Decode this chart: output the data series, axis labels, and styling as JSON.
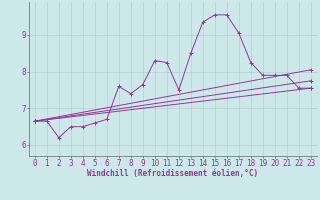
{
  "background_color": "#cce8e8",
  "grid_color": "#aacccc",
  "line_color": "#993399",
  "xlim": [
    -0.5,
    23.5
  ],
  "ylim": [
    5.7,
    9.9
  ],
  "yticks": [
    6,
    7,
    8,
    9
  ],
  "xticks": [
    0,
    1,
    2,
    3,
    4,
    5,
    6,
    7,
    8,
    9,
    10,
    11,
    12,
    13,
    14,
    15,
    16,
    17,
    18,
    19,
    20,
    21,
    22,
    23
  ],
  "xlabel": "Windchill (Refroidissement éolien,°C)",
  "series1_x": [
    0,
    1,
    2,
    3,
    4,
    5,
    6,
    7,
    8,
    9,
    10,
    11,
    12,
    13,
    14,
    15,
    16,
    17,
    18,
    19,
    20,
    21,
    22,
    23
  ],
  "series1_y": [
    6.65,
    6.65,
    6.2,
    6.5,
    6.5,
    6.6,
    6.7,
    7.6,
    7.4,
    7.65,
    8.3,
    8.25,
    7.5,
    8.5,
    9.35,
    9.55,
    9.55,
    9.05,
    8.25,
    7.9,
    7.9,
    7.9,
    7.55,
    7.55
  ],
  "series2_x": [
    0,
    23
  ],
  "series2_y": [
    6.65,
    8.05
  ],
  "series3_x": [
    0,
    23
  ],
  "series3_y": [
    6.65,
    7.75
  ],
  "series4_x": [
    0,
    23
  ],
  "series4_y": [
    6.65,
    7.55
  ],
  "tick_fontsize": 5.5,
  "xlabel_fontsize": 5.5,
  "marker_size": 2.5,
  "linewidth": 0.7
}
